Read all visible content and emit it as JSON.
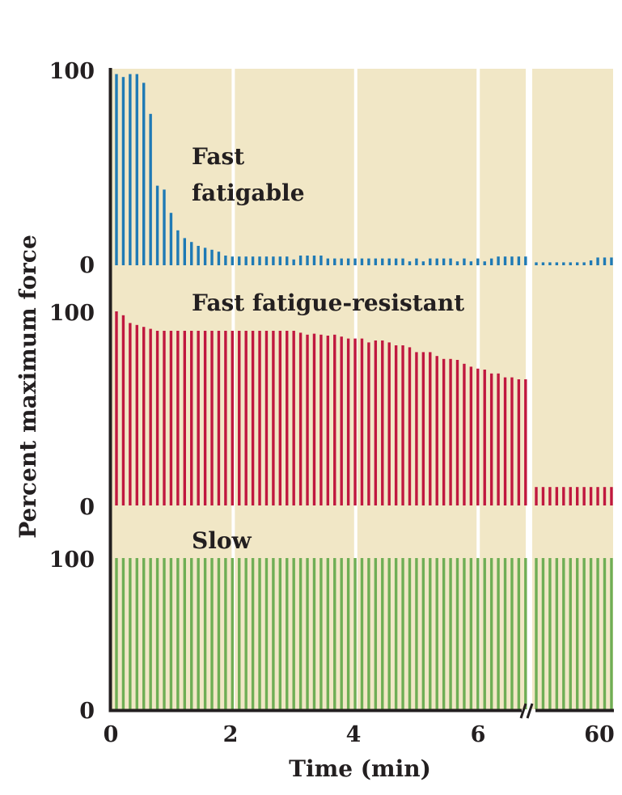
{
  "chart_data": {
    "type": "bar",
    "title": "",
    "xlabel": "Time (min)",
    "ylabel": "Percent maximum force",
    "x_ticks": [
      "0",
      "2",
      "4",
      "6",
      "60"
    ],
    "x_tick_values": [
      0,
      2,
      4,
      6,
      60
    ],
    "x_axis_break": "between 6.8 and ~59 min",
    "xlim": [
      0,
      6.8
    ],
    "xlim_after_break": [
      59,
      60
    ],
    "background_color": "#f1e7c6",
    "grid": "vertical white lines at 2, 4, 6 min",
    "bar_interval_min": 0.111,
    "panels": [
      {
        "name": "Fast fatigable",
        "label_lines": [
          "Fast",
          "fatigable"
        ],
        "color": "#1f7ab5",
        "y_ticks": [
          "100",
          "0"
        ],
        "ylim": [
          0,
          100
        ],
        "values_before_break": [
          98.5,
          97,
          98.5,
          98.5,
          94,
          78,
          41,
          39,
          27,
          18,
          14,
          12,
          10,
          9,
          8,
          7,
          5,
          4.5,
          4.5,
          4.5,
          4.5,
          4.5,
          4.5,
          4.5,
          4.5,
          4.5,
          3,
          5,
          5,
          5,
          5,
          3.5,
          3.5,
          3.5,
          3.5,
          3.5,
          3.5,
          3.5,
          3.5,
          3.5,
          3.5,
          3.5,
          3.5,
          2,
          3.5,
          2,
          3.5,
          3.5,
          3.5,
          3.5,
          2,
          3.5,
          2,
          3.5,
          2,
          3.5,
          4.5,
          4.5,
          4.5,
          4.5,
          4.5
        ],
        "values_after_break": [
          1.5,
          1.5,
          1.5,
          1.5,
          1.5,
          1.5,
          1.5,
          1.5,
          2.5,
          4,
          4,
          4
        ]
      },
      {
        "name": "Fast fatigue-resistant",
        "label_lines": [
          "Fast fatigue-resistant"
        ],
        "color": "#c0183f",
        "y_ticks": [
          "100",
          "0"
        ],
        "ylim": [
          0,
          100
        ],
        "values_before_break": [
          100,
          98,
          94,
          93,
          92,
          91,
          90,
          90,
          90,
          90,
          90,
          90,
          90,
          90,
          90,
          90,
          90,
          90,
          90,
          90,
          90,
          90,
          90,
          90,
          90,
          90,
          90,
          89,
          88,
          88.5,
          88,
          87.5,
          88,
          87,
          86,
          86,
          86,
          84,
          85,
          85,
          84,
          82.5,
          82.5,
          81.5,
          79,
          79,
          79,
          77,
          75.5,
          75.5,
          75,
          73,
          71.5,
          70.5,
          70,
          68,
          68,
          66,
          66,
          65,
          65
        ],
        "values_after_break": [
          9.5,
          9.5,
          9.5,
          9.5,
          9.5,
          9.5,
          9.5,
          9.5,
          9.5,
          9.5,
          9.5,
          9.5
        ]
      },
      {
        "name": "Slow",
        "label_lines": [
          "Slow"
        ],
        "color": "#6fae55",
        "y_ticks": [
          "100",
          "0"
        ],
        "ylim": [
          0,
          100
        ],
        "values_before_break": [
          100,
          100,
          100,
          100,
          100,
          100,
          100,
          100,
          100,
          100,
          100,
          100,
          100,
          100,
          100,
          100,
          100,
          100,
          100,
          100,
          100,
          100,
          100,
          100,
          100,
          100,
          100,
          100,
          100,
          100,
          100,
          100,
          100,
          100,
          100,
          100,
          100,
          100,
          100,
          100,
          100,
          100,
          100,
          100,
          100,
          100,
          100,
          100,
          100,
          100,
          100,
          100,
          100,
          100,
          100,
          100,
          100,
          100,
          100,
          100,
          100
        ],
        "values_after_break": [
          100,
          100,
          100,
          100,
          100,
          100,
          100,
          100,
          100,
          100,
          100,
          100
        ]
      }
    ]
  }
}
